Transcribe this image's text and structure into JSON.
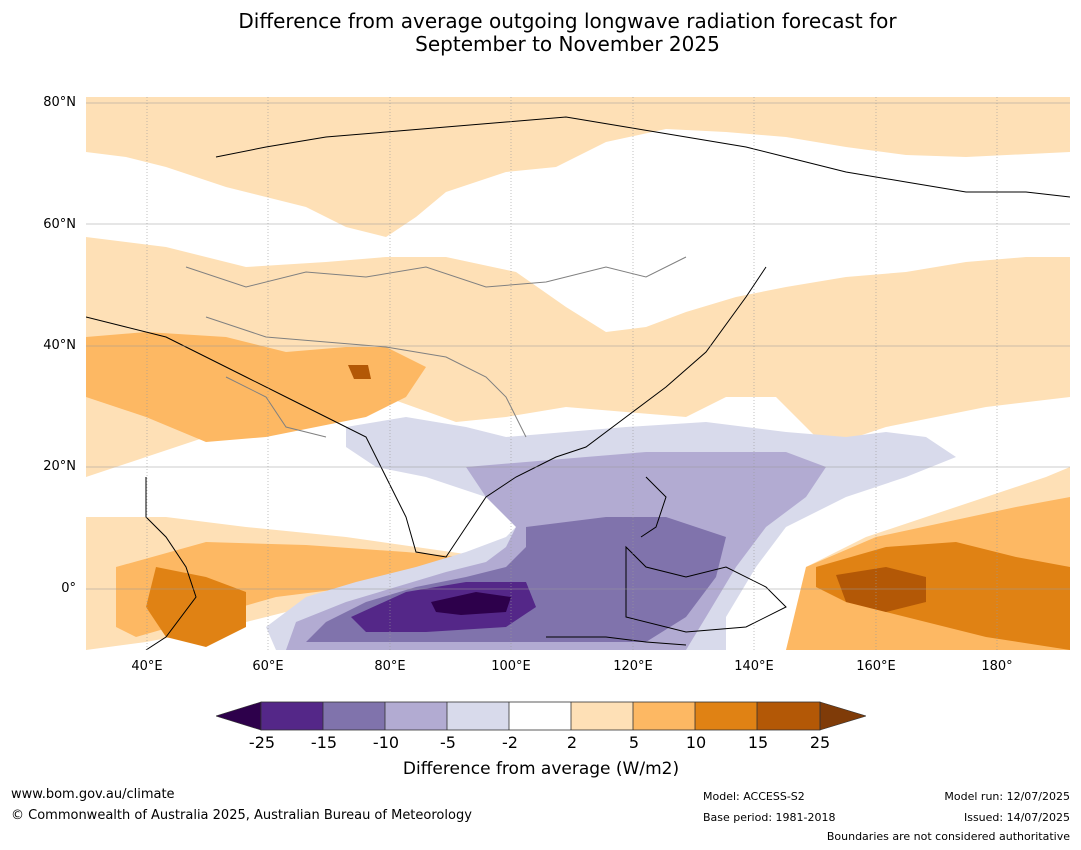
{
  "title": {
    "line1": "Difference from average outgoing longwave radiation forecast for",
    "line2": "September to November 2025"
  },
  "map": {
    "projection": "equirectangular",
    "lon_range": [
      30,
      192
    ],
    "lat_range": [
      -10,
      81
    ],
    "lat_ticks": [
      {
        "value": 80,
        "label": "80°N"
      },
      {
        "value": 60,
        "label": "60°N"
      },
      {
        "value": 40,
        "label": "40°N"
      },
      {
        "value": 20,
        "label": "20°N"
      },
      {
        "value": 0,
        "label": "0°"
      }
    ],
    "lon_ticks": [
      {
        "value": 40,
        "label": "40°E"
      },
      {
        "value": 60,
        "label": "60°E"
      },
      {
        "value": 80,
        "label": "80°E"
      },
      {
        "value": 100,
        "label": "100°E"
      },
      {
        "value": 120,
        "label": "120°E"
      },
      {
        "value": 140,
        "label": "140°E"
      },
      {
        "value": 160,
        "label": "160°E"
      },
      {
        "value": 180,
        "label": "180°"
      }
    ]
  },
  "colorbar": {
    "ticks": [
      "-25",
      "-15",
      "-10",
      "-5",
      "-2",
      "2",
      "5",
      "10",
      "15",
      "25"
    ],
    "colors": [
      "#2d004b",
      "#542788",
      "#8073ac",
      "#b2abd2",
      "#d8daeb",
      "#ffffff",
      "#fee0b6",
      "#fdb863",
      "#e08214",
      "#b35806",
      "#7f3b08"
    ],
    "label": "Difference from average (W/m2)"
  },
  "footer": {
    "website": "www.bom.gov.au/climate",
    "copyright": "© Commonwealth of Australia 2025, Australian Bureau of Meteorology",
    "model": "Model: ACCESS-S2",
    "base_period": "Base period: 1981-2018",
    "model_run": "Model run: 12/07/2025",
    "issued": "Issued: 14/07/2025",
    "disclaimer": "Boundaries are not considered authoritative"
  }
}
